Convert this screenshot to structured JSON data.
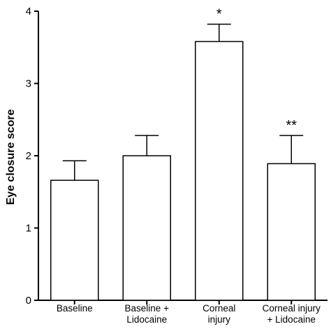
{
  "chart_data": {
    "type": "bar",
    "categories": [
      [
        "Baseline"
      ],
      [
        "Baseline +",
        "Lidocaine"
      ],
      [
        "Corneal",
        "injury"
      ],
      [
        "Corneal injury",
        "+ Lidocaine"
      ]
    ],
    "values": [
      1.66,
      2.0,
      3.58,
      1.89
    ],
    "errors": [
      0.27,
      0.28,
      0.24,
      0.39
    ],
    "annotations": [
      "",
      "",
      "*",
      "**"
    ],
    "ylabel": "Eye closure score",
    "xlabel": "",
    "ylim": [
      0,
      4
    ],
    "yticks": [
      0,
      1,
      2,
      3,
      4
    ],
    "grid": false,
    "bar_fill": "#ffffff",
    "bar_stroke": "#000000"
  }
}
